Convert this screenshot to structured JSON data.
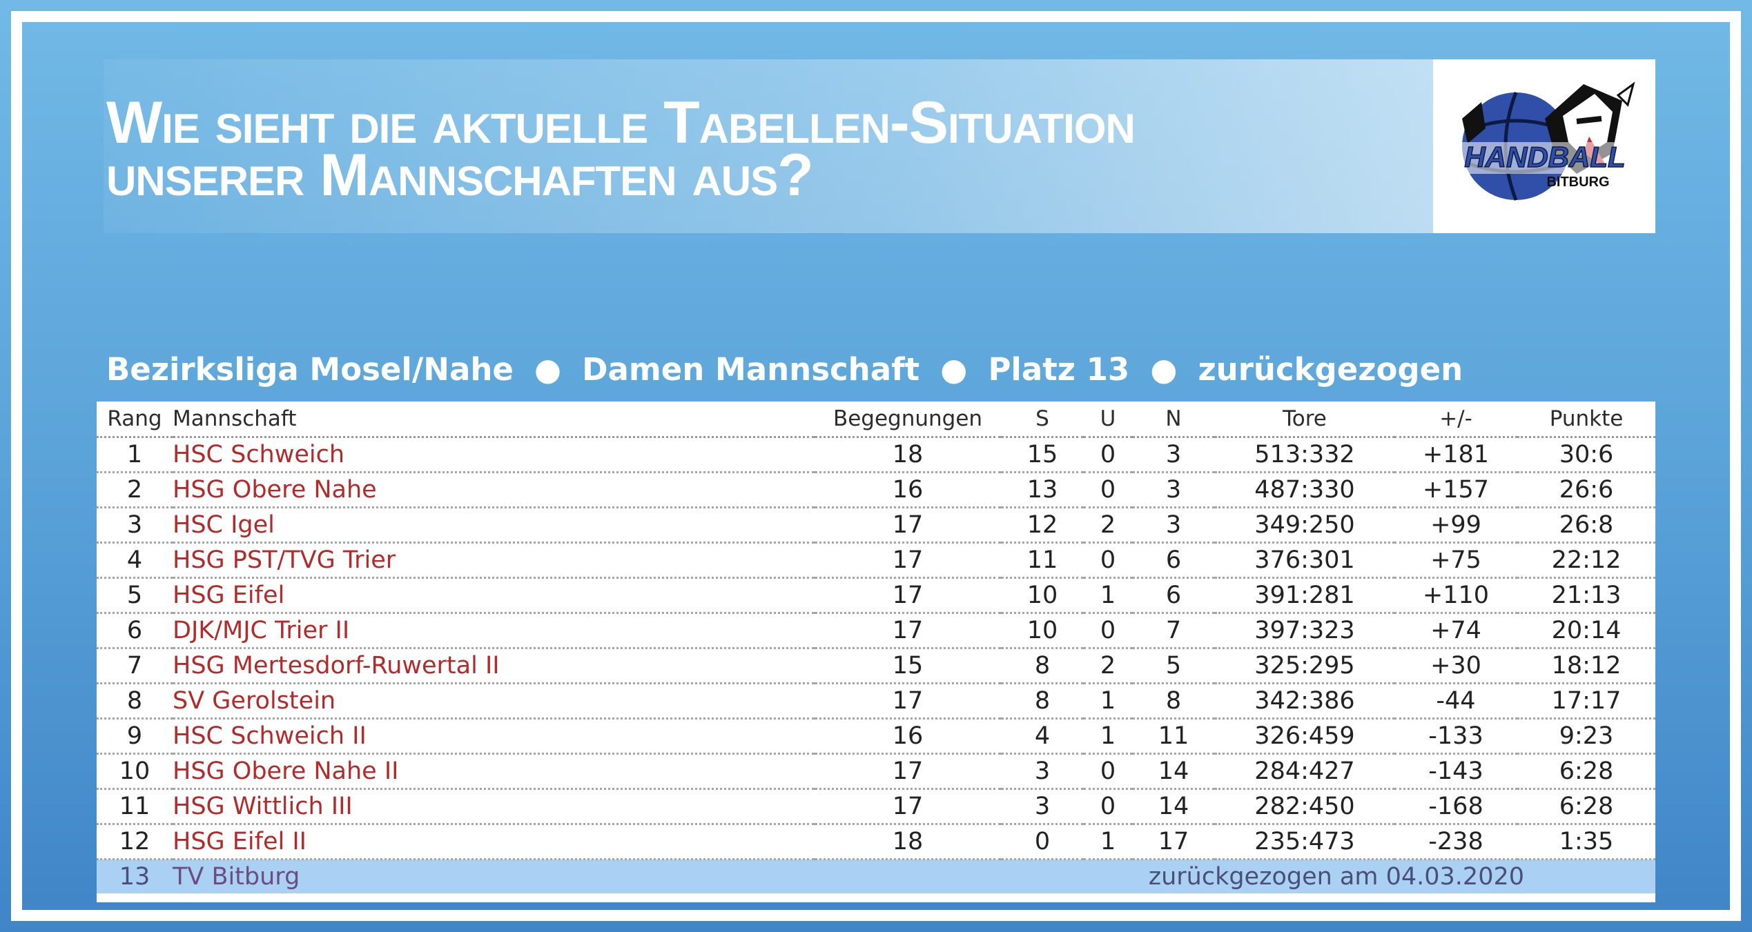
{
  "headline": {
    "line1": "Wie sieht die aktuelle Tabellen-Situation",
    "line2": "unserer Mannschaften aus?"
  },
  "logo": {
    "text_main": "HANDBALL",
    "text_sub": "BITBURG",
    "icon": "handball-bitburg-logo-icon",
    "colors": {
      "blue": "#2f4fa8",
      "dark": "#111111",
      "red": "#c8283a"
    }
  },
  "subtitle": {
    "league": "Bezirksliga Mosel/Nahe",
    "team": "Damen Mannschaft",
    "place": "Platz 13",
    "status": "zurückgezogen",
    "separator": "●"
  },
  "table": {
    "headers": {
      "rang": "Rang",
      "mannschaft": "Mannschaft",
      "begegnungen": "Begegnungen",
      "s": "S",
      "u": "U",
      "n": "N",
      "tore": "Tore",
      "diff": "+/-",
      "punkte": "Punkte"
    },
    "rows": [
      {
        "rang": "1",
        "team": "HSC Schweich",
        "beg": "18",
        "s": "15",
        "u": "0",
        "n": "3",
        "tore": "513:332",
        "diff": "+181",
        "punkte": "30:6"
      },
      {
        "rang": "2",
        "team": "HSG Obere Nahe",
        "beg": "16",
        "s": "13",
        "u": "0",
        "n": "3",
        "tore": "487:330",
        "diff": "+157",
        "punkte": "26:6"
      },
      {
        "rang": "3",
        "team": "HSC Igel",
        "beg": "17",
        "s": "12",
        "u": "2",
        "n": "3",
        "tore": "349:250",
        "diff": "+99",
        "punkte": "26:8"
      },
      {
        "rang": "4",
        "team": "HSG PST/TVG Trier",
        "beg": "17",
        "s": "11",
        "u": "0",
        "n": "6",
        "tore": "376:301",
        "diff": "+75",
        "punkte": "22:12"
      },
      {
        "rang": "5",
        "team": "HSG Eifel",
        "beg": "17",
        "s": "10",
        "u": "1",
        "n": "6",
        "tore": "391:281",
        "diff": "+110",
        "punkte": "21:13"
      },
      {
        "rang": "6",
        "team": "DJK/MJC Trier II",
        "beg": "17",
        "s": "10",
        "u": "0",
        "n": "7",
        "tore": "397:323",
        "diff": "+74",
        "punkte": "20:14"
      },
      {
        "rang": "7",
        "team": "HSG Mertesdorf-Ruwertal II",
        "beg": "15",
        "s": "8",
        "u": "2",
        "n": "5",
        "tore": "325:295",
        "diff": "+30",
        "punkte": "18:12"
      },
      {
        "rang": "8",
        "team": "SV Gerolstein",
        "beg": "17",
        "s": "8",
        "u": "1",
        "n": "8",
        "tore": "342:386",
        "diff": "-44",
        "punkte": "17:17"
      },
      {
        "rang": "9",
        "team": "HSC Schweich II",
        "beg": "16",
        "s": "4",
        "u": "1",
        "n": "11",
        "tore": "326:459",
        "diff": "-133",
        "punkte": "9:23"
      },
      {
        "rang": "10",
        "team": "HSG Obere Nahe II",
        "beg": "17",
        "s": "3",
        "u": "0",
        "n": "14",
        "tore": "284:427",
        "diff": "-143",
        "punkte": "6:28"
      },
      {
        "rang": "11",
        "team": "HSG Wittlich III",
        "beg": "17",
        "s": "3",
        "u": "0",
        "n": "14",
        "tore": "282:450",
        "diff": "-168",
        "punkte": "6:28"
      },
      {
        "rang": "12",
        "team": "HSG Eifel II",
        "beg": "18",
        "s": "0",
        "u": "1",
        "n": "17",
        "tore": "235:473",
        "diff": "-238",
        "punkte": "1:35"
      }
    ],
    "withdrawn": {
      "rang": "13",
      "team": "TV Bitburg",
      "note": "zurückgezogen am 04.03.2020"
    }
  },
  "colors": {
    "background_top": "#72b9e6",
    "background_bottom": "#3f85c7",
    "team_link": "#b22a2a",
    "withdrawn_row": "#aad1f4"
  }
}
